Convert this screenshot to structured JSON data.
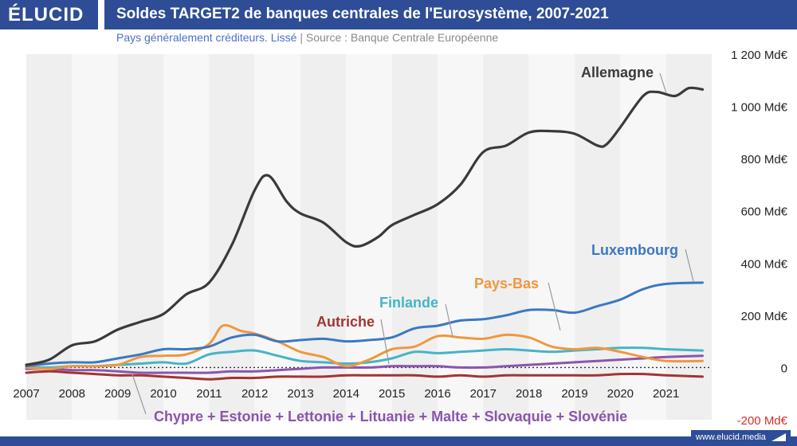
{
  "header": {
    "logo": "ÉLUCID",
    "title": "Soldes TARGET2 de banques centrales de l'Eurosystème, 2007-2021",
    "subtitle_main": "Pays généralement créditeurs. Lissé",
    "subtitle_sep": "|",
    "subtitle_source": "Source : Banque Centrale Européenne"
  },
  "footer": {
    "site": "www.elucid.media"
  },
  "colors": {
    "header_bg": "#2e4d96",
    "allemagne": "#3a3a3a",
    "luxembourg": "#3b78c2",
    "pays_bas": "#f0973e",
    "finlande": "#46b4c6",
    "autriche": "#a33434",
    "groupe": "#8b55ad",
    "negative_tick": "#d0312d"
  },
  "chart_data": {
    "type": "line",
    "title": "Soldes TARGET2 de banques centrales de l'Eurosystème, 2007-2021",
    "xlabel": "",
    "ylabel": "",
    "xlim": [
      2007,
      2022
    ],
    "ylim": [
      -200,
      1200
    ],
    "x_ticks": [
      "2007",
      "2008",
      "2009",
      "2010",
      "2011",
      "2012",
      "2013",
      "2014",
      "2015",
      "2016",
      "2017",
      "2018",
      "2019",
      "2020",
      "2021"
    ],
    "y_ticks": [
      {
        "value": 1200,
        "label": "1 200 Md€"
      },
      {
        "value": 1000,
        "label": "1 000 Md€"
      },
      {
        "value": 800,
        "label": "800 Md€"
      },
      {
        "value": 600,
        "label": "600 Md€"
      },
      {
        "value": 400,
        "label": "400 Md€"
      },
      {
        "value": 200,
        "label": "200 Md€"
      },
      {
        "value": 0,
        "label": "0"
      },
      {
        "value": -200,
        "label": "-200 Md€"
      }
    ],
    "grid": "alternating year bands",
    "legend": "direct labels",
    "series": [
      {
        "name": "Allemagne",
        "color": "#3a3a3a",
        "points": [
          [
            2007,
            10
          ],
          [
            2007.5,
            30
          ],
          [
            2008,
            85
          ],
          [
            2008.5,
            100
          ],
          [
            2009,
            145
          ],
          [
            2009.5,
            175
          ],
          [
            2010,
            205
          ],
          [
            2010.5,
            280
          ],
          [
            2011,
            325
          ],
          [
            2011.5,
            470
          ],
          [
            2012,
            680
          ],
          [
            2012.3,
            735
          ],
          [
            2012.7,
            635
          ],
          [
            2013,
            590
          ],
          [
            2013.5,
            555
          ],
          [
            2014,
            480
          ],
          [
            2014.3,
            465
          ],
          [
            2014.7,
            500
          ],
          [
            2015,
            545
          ],
          [
            2015.5,
            585
          ],
          [
            2016,
            625
          ],
          [
            2016.5,
            700
          ],
          [
            2017,
            825
          ],
          [
            2017.5,
            850
          ],
          [
            2018,
            900
          ],
          [
            2018.5,
            905
          ],
          [
            2019,
            895
          ],
          [
            2019.5,
            850
          ],
          [
            2019.7,
            855
          ],
          [
            2020,
            920
          ],
          [
            2020.5,
            1040
          ],
          [
            2020.8,
            1055
          ],
          [
            2021.2,
            1040
          ],
          [
            2021.5,
            1070
          ],
          [
            2021.8,
            1065
          ]
        ]
      },
      {
        "name": "Luxembourg",
        "color": "#3b78c2",
        "points": [
          [
            2007,
            5
          ],
          [
            2007.5,
            15
          ],
          [
            2008,
            20
          ],
          [
            2008.5,
            20
          ],
          [
            2009,
            35
          ],
          [
            2009.5,
            50
          ],
          [
            2010,
            70
          ],
          [
            2010.5,
            70
          ],
          [
            2011,
            80
          ],
          [
            2011.5,
            115
          ],
          [
            2012,
            125
          ],
          [
            2012.5,
            100
          ],
          [
            2013,
            105
          ],
          [
            2013.5,
            110
          ],
          [
            2014,
            100
          ],
          [
            2014.5,
            105
          ],
          [
            2015,
            115
          ],
          [
            2015.5,
            150
          ],
          [
            2016,
            160
          ],
          [
            2016.5,
            180
          ],
          [
            2017,
            185
          ],
          [
            2017.5,
            200
          ],
          [
            2018,
            220
          ],
          [
            2018.5,
            220
          ],
          [
            2019,
            210
          ],
          [
            2019.5,
            235
          ],
          [
            2020,
            260
          ],
          [
            2020.5,
            300
          ],
          [
            2021,
            320
          ],
          [
            2021.8,
            325
          ]
        ]
      },
      {
        "name": "Pays-Bas",
        "color": "#f0973e",
        "points": [
          [
            2007,
            0
          ],
          [
            2007.5,
            -5
          ],
          [
            2008,
            5
          ],
          [
            2008.5,
            5
          ],
          [
            2009,
            10
          ],
          [
            2009.5,
            40
          ],
          [
            2010,
            45
          ],
          [
            2010.5,
            50
          ],
          [
            2011,
            90
          ],
          [
            2011.3,
            160
          ],
          [
            2011.7,
            140
          ],
          [
            2012,
            130
          ],
          [
            2012.5,
            100
          ],
          [
            2013,
            60
          ],
          [
            2013.5,
            40
          ],
          [
            2014,
            5
          ],
          [
            2014.5,
            30
          ],
          [
            2015,
            70
          ],
          [
            2015.5,
            80
          ],
          [
            2016,
            120
          ],
          [
            2016.5,
            115
          ],
          [
            2017,
            110
          ],
          [
            2017.5,
            125
          ],
          [
            2018,
            115
          ],
          [
            2018.5,
            80
          ],
          [
            2019,
            70
          ],
          [
            2019.5,
            75
          ],
          [
            2020,
            60
          ],
          [
            2020.5,
            40
          ],
          [
            2021,
            25
          ],
          [
            2021.8,
            25
          ]
        ]
      },
      {
        "name": "Finlande",
        "color": "#46b4c6",
        "points": [
          [
            2007,
            0
          ],
          [
            2007.5,
            0
          ],
          [
            2008,
            5
          ],
          [
            2008.5,
            5
          ],
          [
            2009,
            10
          ],
          [
            2009.5,
            15
          ],
          [
            2010,
            20
          ],
          [
            2010.5,
            15
          ],
          [
            2011,
            50
          ],
          [
            2011.5,
            60
          ],
          [
            2012,
            65
          ],
          [
            2012.5,
            45
          ],
          [
            2013,
            25
          ],
          [
            2013.5,
            20
          ],
          [
            2014,
            15
          ],
          [
            2014.5,
            20
          ],
          [
            2015,
            35
          ],
          [
            2015.5,
            60
          ],
          [
            2016,
            55
          ],
          [
            2016.5,
            60
          ],
          [
            2017,
            65
          ],
          [
            2017.5,
            70
          ],
          [
            2018,
            65
          ],
          [
            2018.5,
            60
          ],
          [
            2019,
            65
          ],
          [
            2019.5,
            70
          ],
          [
            2020,
            75
          ],
          [
            2020.5,
            75
          ],
          [
            2021,
            70
          ],
          [
            2021.8,
            65
          ]
        ]
      },
      {
        "name": "Autriche",
        "color": "#a33434",
        "points": [
          [
            2007,
            -20
          ],
          [
            2007.5,
            -15
          ],
          [
            2008,
            -20
          ],
          [
            2008.5,
            -25
          ],
          [
            2009,
            -30
          ],
          [
            2009.5,
            -30
          ],
          [
            2010,
            -35
          ],
          [
            2010.5,
            -40
          ],
          [
            2011,
            -45
          ],
          [
            2011.5,
            -40
          ],
          [
            2012,
            -40
          ],
          [
            2012.5,
            -35
          ],
          [
            2013,
            -35
          ],
          [
            2013.5,
            -35
          ],
          [
            2014,
            -30
          ],
          [
            2014.5,
            -30
          ],
          [
            2015,
            -30
          ],
          [
            2015.5,
            -30
          ],
          [
            2016,
            -35
          ],
          [
            2016.5,
            -30
          ],
          [
            2017,
            -35
          ],
          [
            2017.5,
            -30
          ],
          [
            2018,
            -30
          ],
          [
            2018.5,
            -30
          ],
          [
            2019,
            -30
          ],
          [
            2019.5,
            -30
          ],
          [
            2020,
            -25
          ],
          [
            2020.5,
            -25
          ],
          [
            2021,
            -30
          ],
          [
            2021.8,
            -35
          ]
        ]
      },
      {
        "name": "Chypre + Estonie + Lettonie + Lituanie + Malte + Slovaquie + Slovénie",
        "color": "#8b55ad",
        "points": [
          [
            2007,
            -5
          ],
          [
            2007.5,
            -5
          ],
          [
            2008,
            -10
          ],
          [
            2008.5,
            -10
          ],
          [
            2009,
            -15
          ],
          [
            2009.5,
            -20
          ],
          [
            2010,
            -20
          ],
          [
            2010.5,
            -20
          ],
          [
            2011,
            -20
          ],
          [
            2011.5,
            -15
          ],
          [
            2012,
            -15
          ],
          [
            2012.5,
            -10
          ],
          [
            2013,
            -5
          ],
          [
            2013.5,
            0
          ],
          [
            2014,
            0
          ],
          [
            2014.5,
            0
          ],
          [
            2015,
            5
          ],
          [
            2015.5,
            5
          ],
          [
            2016,
            5
          ],
          [
            2016.5,
            0
          ],
          [
            2017,
            0
          ],
          [
            2017.5,
            5
          ],
          [
            2018,
            10
          ],
          [
            2018.5,
            15
          ],
          [
            2019,
            20
          ],
          [
            2019.5,
            25
          ],
          [
            2020,
            30
          ],
          [
            2020.5,
            35
          ],
          [
            2021,
            40
          ],
          [
            2021.8,
            45
          ]
        ]
      }
    ]
  },
  "labels": {
    "allemagne": "Allemagne",
    "luxembourg": "Luxembourg",
    "pays_bas": "Pays-Bas",
    "finlande": "Finlande",
    "autriche": "Autriche",
    "groupe": "Chypre + Estonie + Lettonie + Lituanie + Malte + Slovaquie + Slovénie"
  }
}
